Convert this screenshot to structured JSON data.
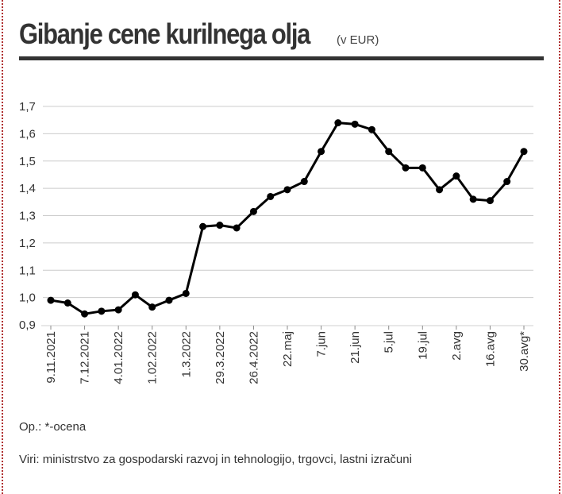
{
  "header": {
    "title": "Gibanje cene kurilnega olja",
    "unit": "(v EUR)"
  },
  "notes": {
    "op": "Op.: *-ocena",
    "sources": "Viri: ministrstvo za gospodarski razvoj in tehnologijo, trgovci, lastni izračuni"
  },
  "colors": {
    "line": "#000000",
    "grid": "#cccccc",
    "text": "#333333"
  },
  "chart_data": {
    "type": "line",
    "title": "Gibanje cene kurilnega olja",
    "ylabel": "",
    "xlabel": "",
    "ylim": [
      0.9,
      1.7
    ],
    "y_ticks": [
      "0,9",
      "1,0",
      "1,1",
      "1,2",
      "1,3",
      "1,4",
      "1,5",
      "1,6",
      "1,7"
    ],
    "grid": "horizontal",
    "x_tick_labels": [
      "9.11.2021",
      "7.12.2021",
      "4.01.2022",
      "1.02.2022",
      "1.3.2022",
      "29.3.2022",
      "26.4.2022",
      "22.maj",
      "7.jun",
      "21.jun",
      "5.jul",
      "19.jul",
      "2.avg",
      "16.avg",
      "30.avg*"
    ],
    "series": [
      {
        "values": [
          0.99,
          0.98,
          0.94,
          0.95,
          0.955,
          1.01,
          0.965,
          0.99,
          1.015,
          1.26,
          1.265,
          1.255,
          1.315,
          1.37,
          1.395,
          1.425,
          1.535,
          1.64,
          1.635,
          1.615,
          1.535,
          1.475,
          1.475,
          1.395,
          1.445,
          1.36,
          1.355,
          1.425,
          1.535
        ]
      }
    ]
  }
}
